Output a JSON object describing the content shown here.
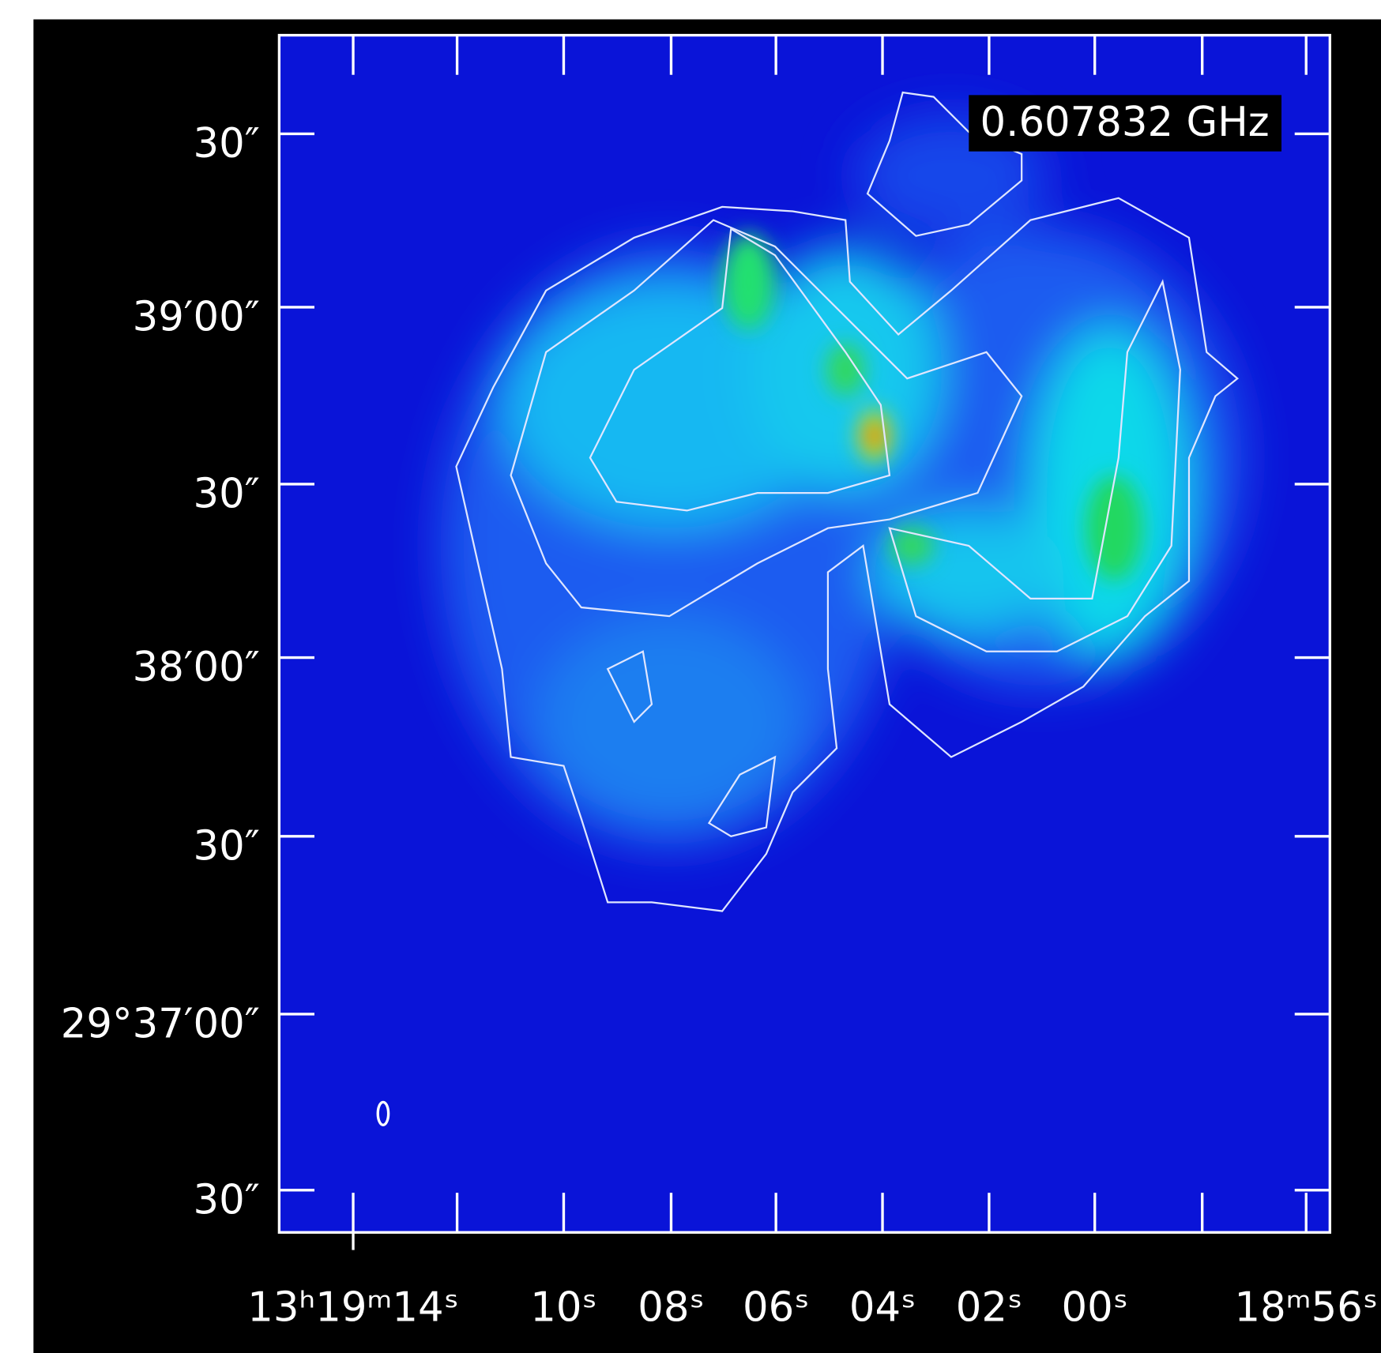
{
  "frequency_label": "0.607832 GHz",
  "y_tick_labels": [
    "30″",
    "39′00″",
    "30″",
    "38′00″",
    "30″",
    "29°37′00″",
    "30″"
  ],
  "x_tick_labels": [
    "13ʰ19ᵐ14ˢ",
    "10ˢ",
    "08ˢ",
    "06ˢ",
    "04ˢ",
    "02ˢ",
    "00ˢ",
    "18ᵐ56ˢ"
  ]
}
